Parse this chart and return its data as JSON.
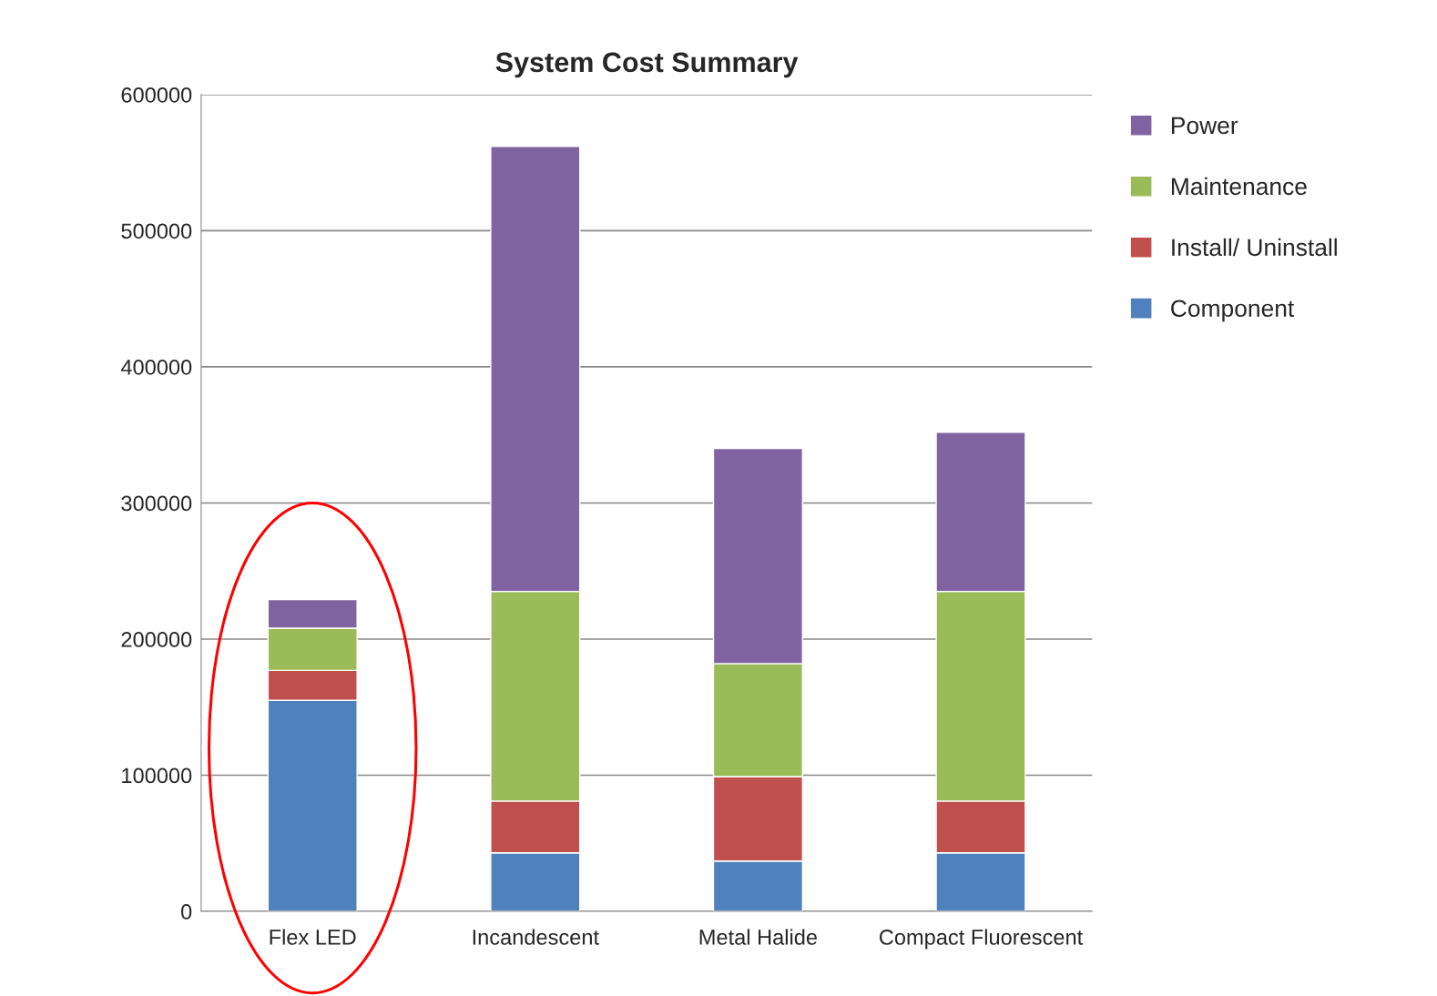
{
  "chart_data": {
    "type": "bar",
    "title": "System Cost Summary",
    "stacked": true,
    "categories": [
      "Flex LED",
      "Incandescent",
      "Metal Halide",
      "Compact Fluorescent"
    ],
    "series": [
      {
        "name": "Component",
        "color": "#4f81bd",
        "values": [
          155000,
          43000,
          37000,
          43000
        ]
      },
      {
        "name": "Install/ Uninstall",
        "color": "#c0504d",
        "values": [
          22000,
          38000,
          62000,
          38000
        ]
      },
      {
        "name": "Maintenance",
        "color": "#9bbb59",
        "values": [
          31000,
          154000,
          83000,
          154000
        ]
      },
      {
        "name": "Power",
        "color": "#8064a2",
        "values": [
          21000,
          327000,
          158000,
          117000
        ]
      }
    ],
    "ylim": [
      0,
      600000
    ],
    "yticks": [
      0,
      100000,
      200000,
      300000,
      400000,
      500000,
      600000
    ],
    "grid": "y",
    "legend": "top right"
  }
}
